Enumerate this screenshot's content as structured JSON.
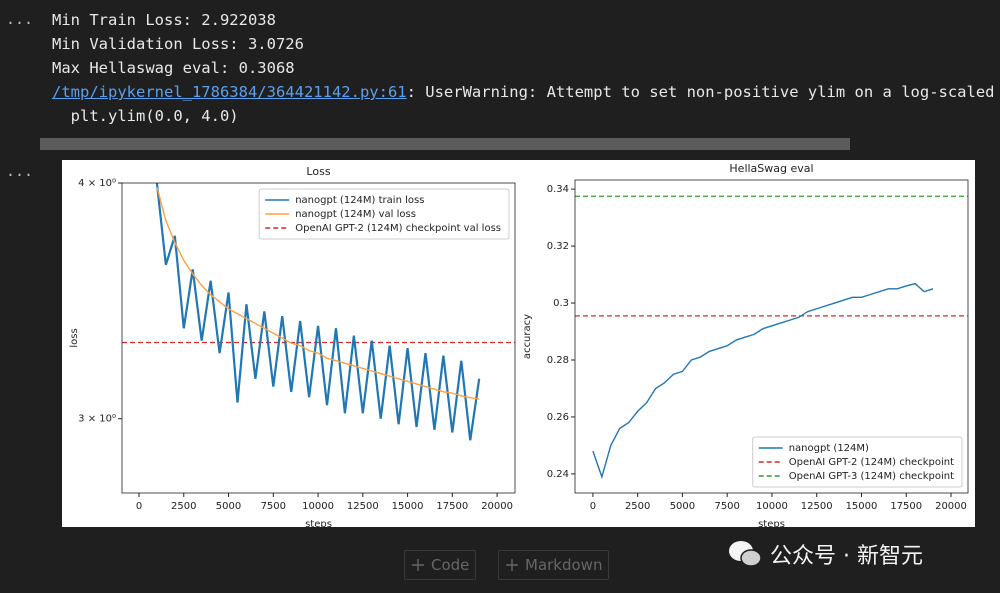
{
  "cell_prompts": [
    "...",
    "..."
  ],
  "output_lines": [
    "Min Train Loss: 2.922038",
    "Min Validation Loss: 3.0726",
    "Max Hellaswag eval: 0.3068"
  ],
  "warning": {
    "link": "/tmp/ipykernel_1786384/364421142.py:61",
    "message": ": UserWarning: Attempt to set non-positive ylim on a log-scaled",
    "code": "  plt.ylim(0.0, 4.0)"
  },
  "chart_data": [
    {
      "type": "line",
      "title": "Loss",
      "x_label": "steps",
      "y_label": "loss",
      "y_scale": "log",
      "legend": "upper right",
      "xlim": [
        -950,
        21000
      ],
      "xticks": [
        0,
        2500,
        5000,
        7500,
        10000,
        12500,
        15000,
        17500,
        20000
      ],
      "ylim": [
        2.74,
        4.0
      ],
      "yticks": [
        {
          "value": 4,
          "label": "4 × 10⁰"
        },
        {
          "value": 3,
          "label": "3 × 10⁰"
        }
      ],
      "x": [
        1000,
        1500,
        2000,
        2500,
        3000,
        3500,
        4000,
        4500,
        5000,
        5500,
        6000,
        6500,
        7000,
        7500,
        8000,
        8500,
        9000,
        9500,
        10000,
        10500,
        11000,
        11500,
        12000,
        12500,
        13000,
        13500,
        14000,
        14500,
        15000,
        15500,
        16000,
        16500,
        17000,
        17500,
        18000,
        18500,
        19000
      ],
      "series": [
        {
          "name": "nanogpt (124M) train loss",
          "color": "#1f77b4",
          "values": [
            4.0,
            3.62,
            3.75,
            3.35,
            3.6,
            3.3,
            3.55,
            3.25,
            3.5,
            3.06,
            3.45,
            3.15,
            3.42,
            3.12,
            3.4,
            3.1,
            3.38,
            3.08,
            3.36,
            3.05,
            3.35,
            3.02,
            3.32,
            3.02,
            3.3,
            3.0,
            3.28,
            2.98,
            3.27,
            2.97,
            3.25,
            2.96,
            3.24,
            2.95,
            3.22,
            2.922038,
            3.15
          ]
        },
        {
          "name": "nanogpt (124M) val loss",
          "color": "#ff9f3f",
          "values": [
            3.98,
            3.82,
            3.72,
            3.64,
            3.58,
            3.53,
            3.49,
            3.46,
            3.43,
            3.41,
            3.39,
            3.37,
            3.35,
            3.33,
            3.31,
            3.29,
            3.28,
            3.26,
            3.25,
            3.23,
            3.22,
            3.21,
            3.2,
            3.19,
            3.18,
            3.17,
            3.16,
            3.15,
            3.14,
            3.13,
            3.12,
            3.11,
            3.1,
            3.095,
            3.085,
            3.078,
            3.0726
          ]
        }
      ],
      "reference_lines": [
        {
          "name": "OpenAI GPT-2 (124M) checkpoint val loss",
          "color": "#d62728",
          "value": 3.2924
        }
      ]
    },
    {
      "type": "line",
      "title": "HellaSwag eval",
      "x_label": "steps",
      "y_label": "accuracy",
      "legend": "lower right",
      "xlim": [
        -1000,
        20950
      ],
      "xticks": [
        0,
        2500,
        5000,
        7500,
        10000,
        12500,
        15000,
        17500,
        20000
      ],
      "ylim": [
        0.2333,
        0.3432
      ],
      "yticks": [
        0.24,
        0.26,
        0.28,
        0.3,
        0.32,
        0.34
      ],
      "x": [
        0,
        500,
        1000,
        1500,
        2000,
        2500,
        3000,
        3500,
        4000,
        4500,
        5000,
        5500,
        6000,
        6500,
        7000,
        7500,
        8000,
        8500,
        9000,
        9500,
        10000,
        10500,
        11000,
        11500,
        12000,
        12500,
        13000,
        13500,
        14000,
        14500,
        15000,
        15500,
        16000,
        16500,
        17000,
        17500,
        18000,
        18500,
        19000
      ],
      "series": [
        {
          "name": "nanogpt (124M)",
          "color": "#1f77b4",
          "values": [
            0.248,
            0.239,
            0.25,
            0.256,
            0.258,
            0.262,
            0.265,
            0.27,
            0.272,
            0.275,
            0.276,
            0.28,
            0.281,
            0.283,
            0.284,
            0.285,
            0.287,
            0.288,
            0.289,
            0.291,
            0.292,
            0.293,
            0.294,
            0.295,
            0.297,
            0.298,
            0.299,
            0.3,
            0.301,
            0.302,
            0.302,
            0.303,
            0.304,
            0.305,
            0.305,
            0.306,
            0.3068,
            0.304,
            0.305
          ]
        }
      ],
      "reference_lines": [
        {
          "name": "OpenAI GPT-2 (124M) checkpoint",
          "color": "#d62728",
          "value": 0.2955
        },
        {
          "name": "OpenAI GPT-3 (124M) checkpoint",
          "color": "#2ca02c",
          "value": 0.3375
        }
      ]
    }
  ],
  "toolbar": {
    "code": "Code",
    "markdown": "Markdown"
  },
  "watermark": "公众号 · 新智元"
}
